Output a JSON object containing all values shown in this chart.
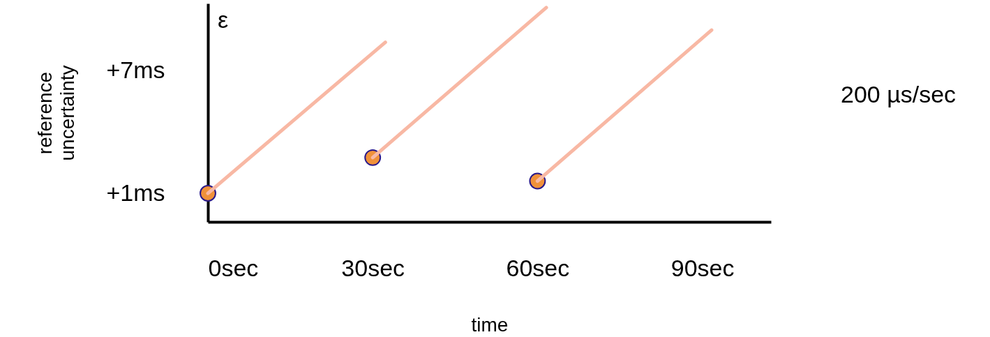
{
  "chart_data": {
    "type": "line",
    "xlabel": "time",
    "ylabel": "reference uncertainty",
    "xlim": [
      0,
      102.5
    ],
    "ylim": [
      -0.4,
      10.3
    ],
    "xticks": [
      {
        "value": 0,
        "label": "0sec"
      },
      {
        "value": 30,
        "label": "30sec"
      },
      {
        "value": 60,
        "label": "60sec"
      },
      {
        "value": 90,
        "label": "90sec"
      }
    ],
    "yticks": [
      {
        "value": 1,
        "label": "+1ms"
      },
      {
        "value": 7,
        "label": "+7ms"
      }
    ],
    "annotations": [
      "ε",
      "200 µs/sec"
    ],
    "series": [
      {
        "color": "#f8b8a4",
        "x": [
          0,
          32.3
        ],
        "values": [
          1,
          8.4
        ]
      },
      {
        "color": "#f8b8a4",
        "x": [
          30,
          61.6
        ],
        "values": [
          2.75,
          10.1
        ]
      },
      {
        "color": "#f8b8a4",
        "x": [
          60,
          91.7
        ],
        "values": [
          1.6,
          9.0
        ]
      },
      {
        "type": "scatter",
        "marker": "circle",
        "color": "#f0913a",
        "x": [
          0,
          30,
          60
        ],
        "values": [
          1,
          2.75,
          1.6
        ]
      }
    ]
  }
}
